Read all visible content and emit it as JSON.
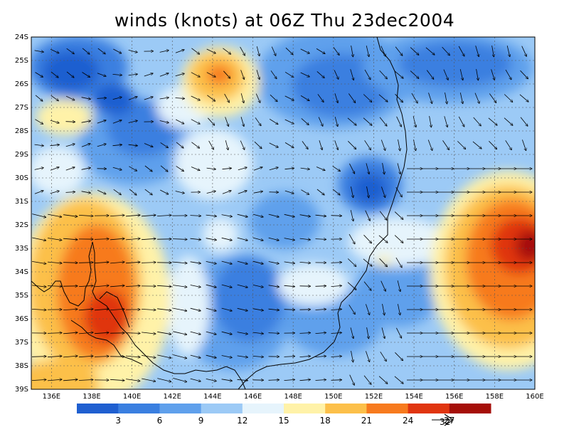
{
  "title": "winds (knots) at 06Z Thu 23dec2004",
  "map": {
    "lon_range": [
      135,
      160
    ],
    "lat_range": [
      -39,
      -24
    ],
    "lon_ticks": [
      "136E",
      "138E",
      "140E",
      "142E",
      "144E",
      "146E",
      "148E",
      "150E",
      "152E",
      "154E",
      "156E",
      "158E",
      "160E"
    ],
    "lat_ticks": [
      "24S",
      "25S",
      "26S",
      "27S",
      "28S",
      "29S",
      "30S",
      "31S",
      "32S",
      "33S",
      "34S",
      "35S",
      "36S",
      "37S",
      "38S",
      "39S"
    ],
    "grid": "dotted"
  },
  "colorbar": {
    "labels": [
      "3",
      "6",
      "9",
      "12",
      "15",
      "18",
      "21",
      "24",
      "27"
    ],
    "colors": [
      "#1f5fd0",
      "#3a7fe0",
      "#5fa0ec",
      "#9ccaf6",
      "#e6f4fc",
      "#fff2a8",
      "#fcc04a",
      "#f77a1e",
      "#e0350f",
      "#a50e08"
    ],
    "reference_vector_label": "32"
  }
}
